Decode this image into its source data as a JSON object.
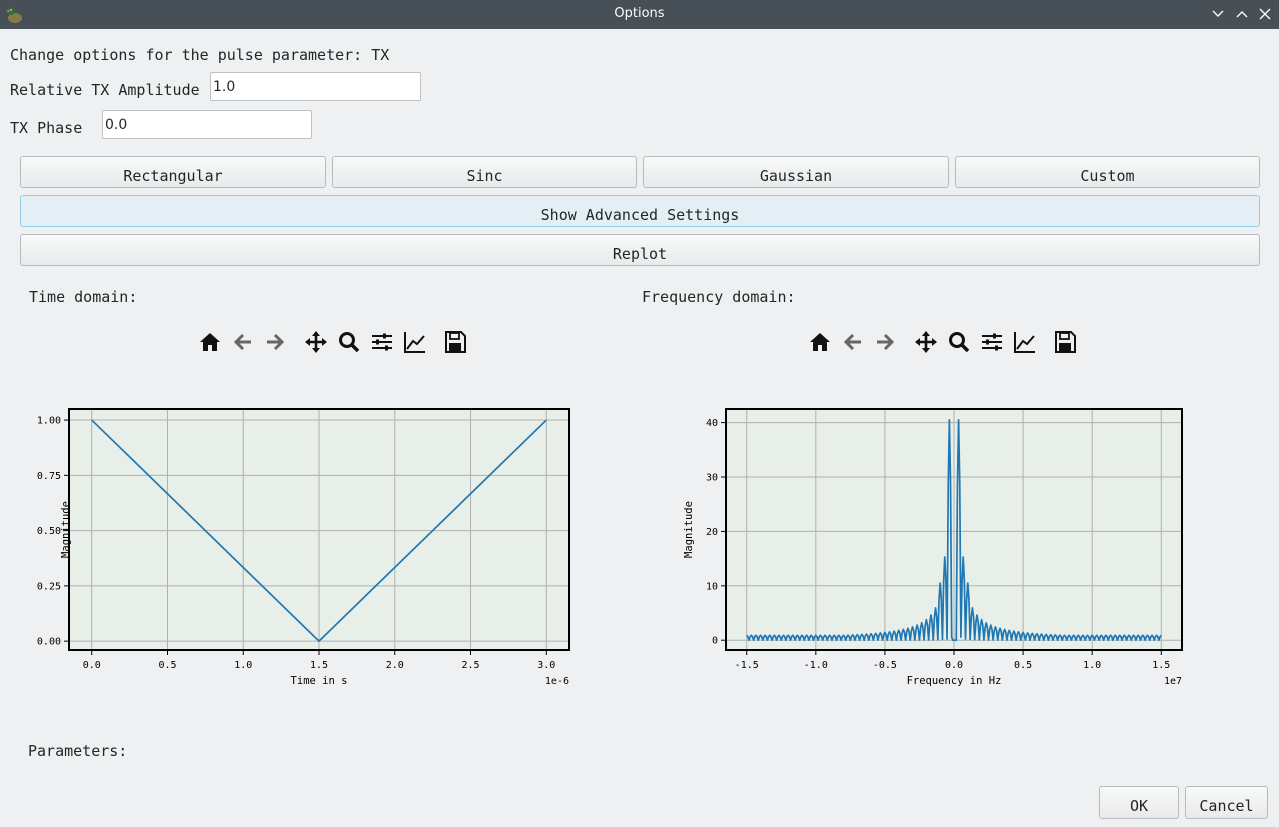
{
  "window": {
    "title": "Options",
    "controls": [
      "chevron-down-icon",
      "chevron-up-icon",
      "close-icon"
    ]
  },
  "header": {
    "text": "Change options for the pulse parameter: TX"
  },
  "fields": {
    "amplitude_label": "Relative TX Amplitude",
    "amplitude_value": "1.0",
    "phase_label": "TX Phase",
    "phase_value": "0.0"
  },
  "buttons": {
    "rectangular": "Rectangular",
    "sinc": "Sinc",
    "gaussian": "Gaussian",
    "custom": "Custom",
    "advanced": "Show Advanced Settings",
    "replot": "Replot",
    "ok": "OK",
    "cancel": "Cancel"
  },
  "sections": {
    "time_domain": "Time domain:",
    "frequency_domain": "Frequency domain:",
    "parameters": "Parameters:"
  },
  "toolbar_icons": [
    "home-icon",
    "back-arrow-icon",
    "forward-arrow-icon",
    "pan-icon",
    "zoom-icon",
    "configure-subplots-icon",
    "edit-axis-icon",
    "save-icon"
  ],
  "colors": {
    "titlebar": "#475057",
    "line": "#1f77b4",
    "axes_bg": "#e7efe8",
    "grid": "#b0b0b0"
  },
  "chart_data": [
    {
      "type": "line",
      "xlabel": "Time in s",
      "ylabel": "Magnitude",
      "offset_text": "1e-6",
      "grid": true,
      "xlim": [
        -0.15,
        3.15
      ],
      "ylim": [
        -0.04,
        1.05
      ],
      "xticks": [
        0.0,
        0.5,
        1.0,
        1.5,
        2.0,
        2.5,
        3.0
      ],
      "xtick_labels": [
        "0.0",
        "0.5",
        "1.0",
        "1.5",
        "2.0",
        "2.5",
        "3.0"
      ],
      "yticks": [
        0.0,
        0.25,
        0.5,
        0.75,
        1.0
      ],
      "ytick_labels": [
        "0.00",
        "0.25",
        "0.50",
        "0.75",
        "1.00"
      ],
      "x": [
        0.0,
        1.5,
        3.0
      ],
      "y": [
        1.0,
        0.0,
        1.0
      ]
    },
    {
      "type": "line",
      "xlabel": "Frequency in Hz",
      "ylabel": "Magnitude",
      "offset_text": "1e7",
      "grid": true,
      "xlim": [
        -1.65,
        1.65
      ],
      "ylim": [
        -1.8,
        42.5
      ],
      "xticks": [
        -1.5,
        -1.0,
        -0.5,
        0.0,
        0.5,
        1.0,
        1.5
      ],
      "xtick_labels": [
        "-1.5",
        "-1.0",
        "-0.5",
        "0.0",
        "0.5",
        "1.0",
        "1.5"
      ],
      "yticks": [
        0,
        10,
        20,
        30,
        40
      ],
      "ytick_labels": [
        "0",
        "10",
        "20",
        "30",
        "40"
      ],
      "lobe_spacing": 0.03333,
      "peak": 40.5,
      "x_range": [
        -1.5,
        1.5
      ]
    }
  ]
}
